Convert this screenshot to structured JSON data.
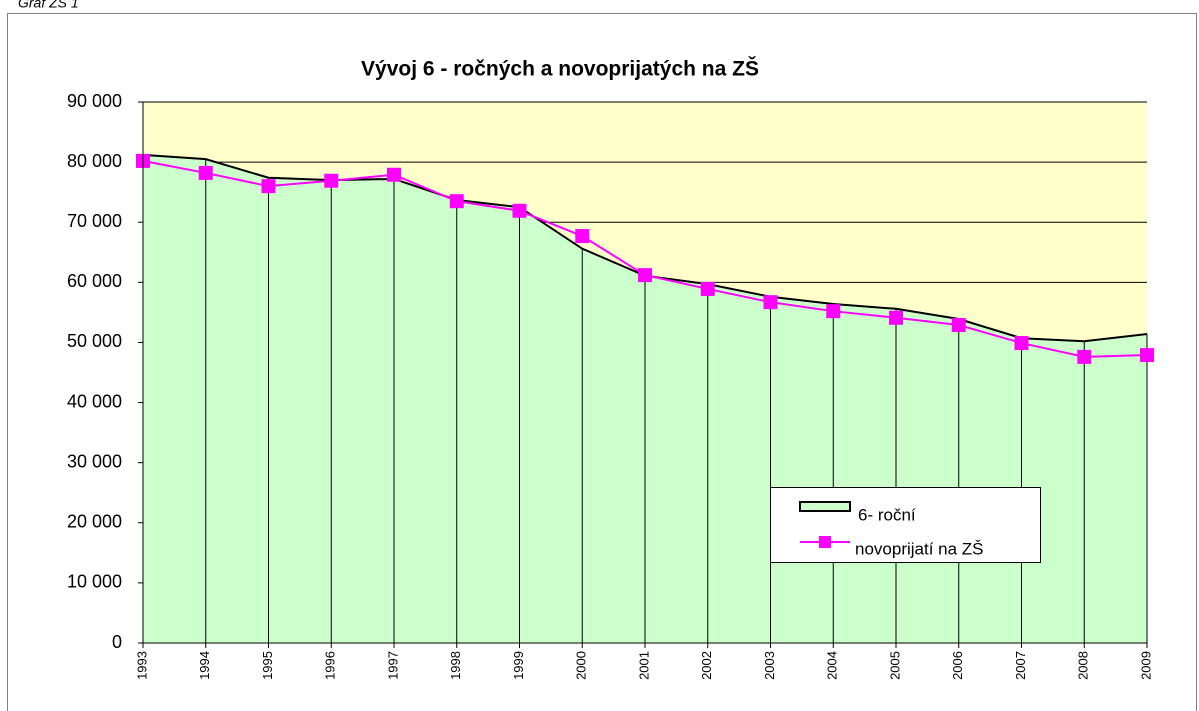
{
  "chart_data": {
    "type": "area",
    "caption": "Graf ZŠ 1",
    "title": "Vývoj 6 - ročných a novoprijatých na ZŠ",
    "categories": [
      "1993",
      "1994",
      "1995",
      "1996",
      "1997",
      "1998",
      "1999",
      "2000",
      "2001",
      "2002",
      "2003",
      "2004",
      "2005",
      "2006",
      "2007",
      "2008",
      "2009"
    ],
    "series": [
      {
        "name": "6- roční",
        "type": "area",
        "color": "#ccffcc",
        "line_color": "#000000",
        "values": [
          81200,
          80500,
          77400,
          77000,
          77200,
          73700,
          72500,
          65600,
          61100,
          59700,
          57600,
          56400,
          55600,
          53900,
          50700,
          50200,
          51400
        ]
      },
      {
        "name": "novoprijatí na ZŠ",
        "type": "line",
        "color": "#ff00ff",
        "marker": "square",
        "values": [
          80200,
          78200,
          76000,
          76900,
          77900,
          73500,
          71900,
          67700,
          61200,
          58900,
          56700,
          55200,
          54100,
          52900,
          49900,
          47600,
          47900
        ]
      }
    ],
    "ylim": [
      0,
      90000
    ],
    "yticks": [
      {
        "value": 0,
        "label": "0"
      },
      {
        "value": 10000,
        "label": "10 000"
      },
      {
        "value": 20000,
        "label": "20 000"
      },
      {
        "value": 30000,
        "label": "30 000"
      },
      {
        "value": 40000,
        "label": "40 000"
      },
      {
        "value": 50000,
        "label": "50 000"
      },
      {
        "value": 60000,
        "label": "60 000"
      },
      {
        "value": 70000,
        "label": "70 000"
      },
      {
        "value": 80000,
        "label": "80 000"
      },
      {
        "value": 90000,
        "label": "90 000"
      }
    ],
    "grid": true,
    "plot_background": "#ffffcc"
  }
}
